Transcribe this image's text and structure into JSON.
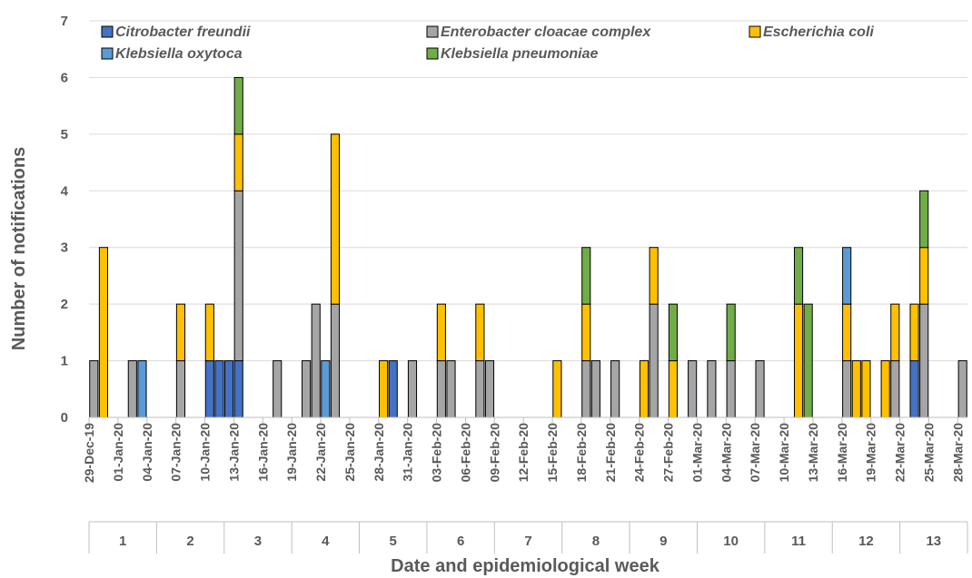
{
  "chart_data": {
    "type": "bar",
    "stacked": true,
    "ylabel": "Number of notifications",
    "xlabel": "Date and epidemiological week",
    "ylim": [
      0,
      7
    ],
    "yticks": [
      0,
      1,
      2,
      3,
      4,
      5,
      6,
      7
    ],
    "grid": true,
    "legend_position": "top",
    "x_start": "2019-12-29",
    "x_end": "2020-03-29",
    "date_tick_labels": [
      "29-Dec-19",
      "01-Jan-20",
      "04-Jan-20",
      "07-Jan-20",
      "10-Jan-20",
      "13-Jan-20",
      "16-Jan-20",
      "19-Jan-20",
      "22-Jan-20",
      "25-Jan-20",
      "28-Jan-20",
      "31-Jan-20",
      "03-Feb-20",
      "06-Feb-20",
      "09-Feb-20",
      "12-Feb-20",
      "15-Feb-20",
      "18-Feb-20",
      "21-Feb-20",
      "24-Feb-20",
      "27-Feb-20",
      "01-Mar-20",
      "04-Mar-20",
      "07-Mar-20",
      "10-Mar-20",
      "13-Mar-20",
      "16-Mar-20",
      "19-Mar-20",
      "22-Mar-20",
      "25-Mar-20",
      "28-Mar-20"
    ],
    "weeks": [
      "1",
      "2",
      "3",
      "4",
      "5",
      "6",
      "7",
      "8",
      "9",
      "10",
      "11",
      "12",
      "13"
    ],
    "series": [
      {
        "name": "Citrobacter freundii",
        "color": "#4472c4"
      },
      {
        "name": "Enterobacter cloacae complex",
        "color": "#a5a5a5"
      },
      {
        "name": "Escherichia coli",
        "color": "#ffc000"
      },
      {
        "name": "Klebsiella oxytoca",
        "color": "#5b9bd5"
      },
      {
        "name": "Klebsiella pneumoniae",
        "color": "#70ad47"
      }
    ],
    "data": [
      {
        "date": "2019-12-29",
        "Enterobacter cloacae complex": 1
      },
      {
        "date": "2019-12-30",
        "Escherichia coli": 3
      },
      {
        "date": "2020-01-02",
        "Enterobacter cloacae complex": 1
      },
      {
        "date": "2020-01-03",
        "Klebsiella oxytoca": 1
      },
      {
        "date": "2020-01-07",
        "Enterobacter cloacae complex": 1,
        "Escherichia coli": 1
      },
      {
        "date": "2020-01-10",
        "Citrobacter freundii": 1,
        "Escherichia coli": 1
      },
      {
        "date": "2020-01-11",
        "Citrobacter freundii": 1
      },
      {
        "date": "2020-01-12",
        "Citrobacter freundii": 1
      },
      {
        "date": "2020-01-13",
        "Citrobacter freundii": 1,
        "Enterobacter cloacae complex": 3,
        "Escherichia coli": 1,
        "Klebsiella pneumoniae": 1
      },
      {
        "date": "2020-01-17",
        "Enterobacter cloacae complex": 1
      },
      {
        "date": "2020-01-20",
        "Enterobacter cloacae complex": 1
      },
      {
        "date": "2020-01-21",
        "Enterobacter cloacae complex": 2
      },
      {
        "date": "2020-01-22",
        "Klebsiella oxytoca": 1
      },
      {
        "date": "2020-01-23",
        "Enterobacter cloacae complex": 2,
        "Escherichia coli": 3
      },
      {
        "date": "2020-01-28",
        "Escherichia coli": 1
      },
      {
        "date": "2020-01-29",
        "Citrobacter freundii": 1
      },
      {
        "date": "2020-01-31",
        "Enterobacter cloacae complex": 1
      },
      {
        "date": "2020-02-03",
        "Enterobacter cloacae complex": 1,
        "Escherichia coli": 1
      },
      {
        "date": "2020-02-04",
        "Enterobacter cloacae complex": 1
      },
      {
        "date": "2020-02-07",
        "Enterobacter cloacae complex": 1,
        "Escherichia coli": 1
      },
      {
        "date": "2020-02-08",
        "Enterobacter cloacae complex": 1
      },
      {
        "date": "2020-02-15",
        "Escherichia coli": 1
      },
      {
        "date": "2020-02-18",
        "Enterobacter cloacae complex": 1,
        "Escherichia coli": 1,
        "Klebsiella pneumoniae": 1
      },
      {
        "date": "2020-02-19",
        "Enterobacter cloacae complex": 1
      },
      {
        "date": "2020-02-21",
        "Enterobacter cloacae complex": 1
      },
      {
        "date": "2020-02-24",
        "Escherichia coli": 1
      },
      {
        "date": "2020-02-25",
        "Enterobacter cloacae complex": 2,
        "Escherichia coli": 1
      },
      {
        "date": "2020-02-27",
        "Escherichia coli": 1,
        "Klebsiella pneumoniae": 1
      },
      {
        "date": "2020-02-29",
        "Enterobacter cloacae complex": 1
      },
      {
        "date": "2020-03-02",
        "Enterobacter cloacae complex": 1
      },
      {
        "date": "2020-03-04",
        "Enterobacter cloacae complex": 1,
        "Klebsiella pneumoniae": 1
      },
      {
        "date": "2020-03-07",
        "Enterobacter cloacae complex": 1
      },
      {
        "date": "2020-03-11",
        "Escherichia coli": 2,
        "Klebsiella pneumoniae": 1
      },
      {
        "date": "2020-03-12",
        "Klebsiella pneumoniae": 2
      },
      {
        "date": "2020-03-16",
        "Enterobacter cloacae complex": 1,
        "Escherichia coli": 1,
        "Klebsiella oxytoca": 1
      },
      {
        "date": "2020-03-17",
        "Escherichia coli": 1
      },
      {
        "date": "2020-03-18",
        "Escherichia coli": 1
      },
      {
        "date": "2020-03-20",
        "Escherichia coli": 1
      },
      {
        "date": "2020-03-21",
        "Enterobacter cloacae complex": 1,
        "Escherichia coli": 1
      },
      {
        "date": "2020-03-23",
        "Citrobacter freundii": 1,
        "Escherichia coli": 1
      },
      {
        "date": "2020-03-24",
        "Enterobacter cloacae complex": 2,
        "Escherichia coli": 1,
        "Klebsiella pneumoniae": 1
      },
      {
        "date": "2020-03-28",
        "Enterobacter cloacae complex": 1
      }
    ]
  }
}
